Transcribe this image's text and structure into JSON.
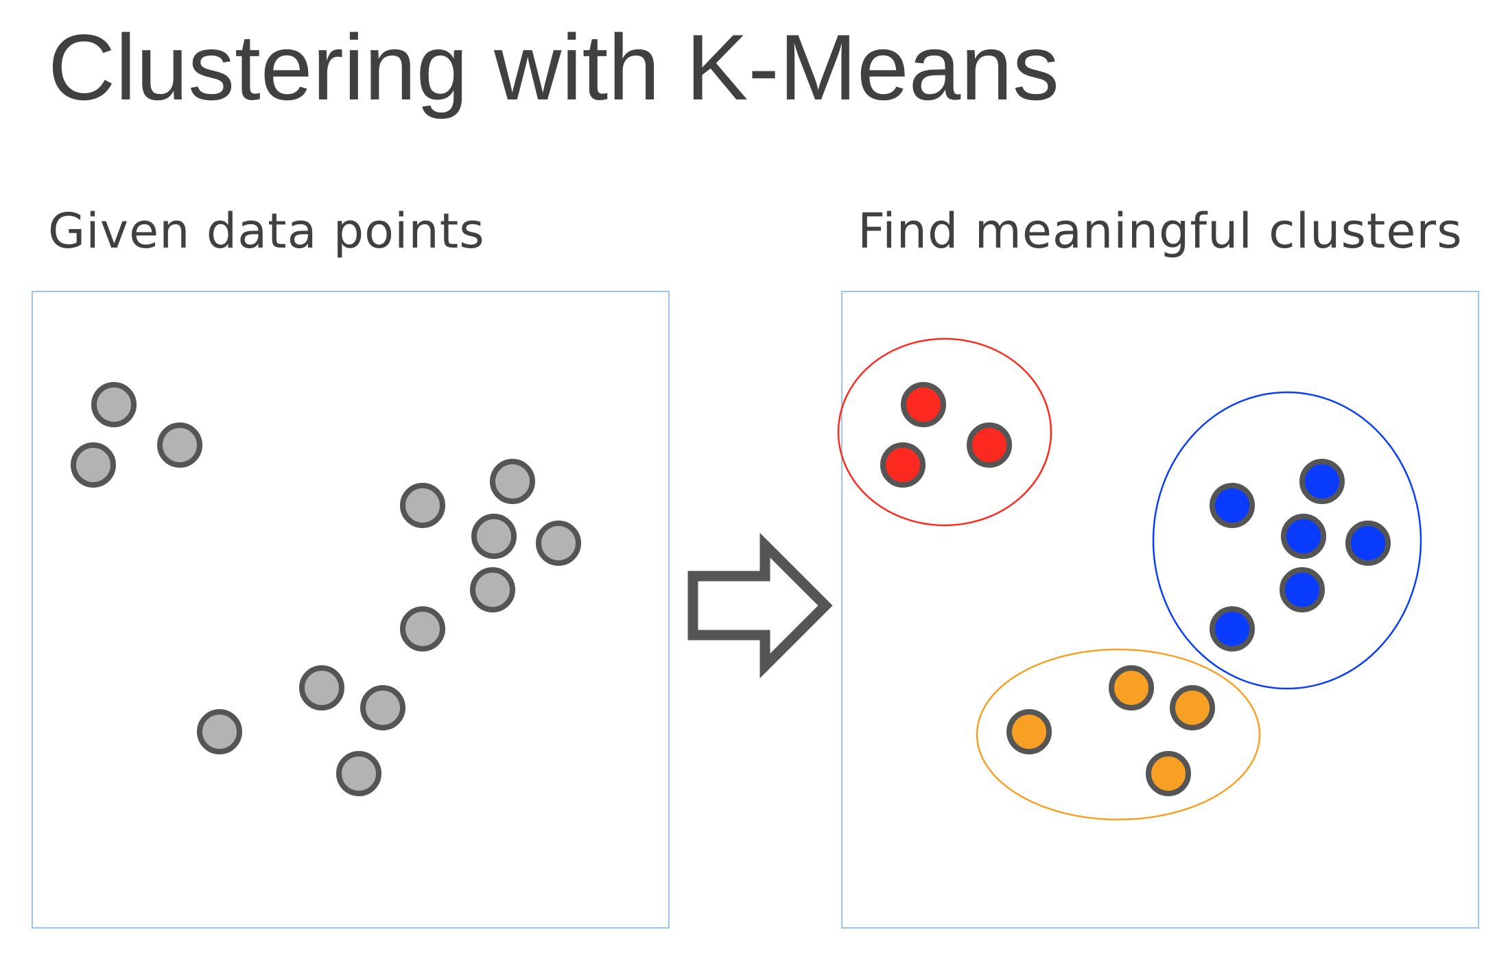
{
  "title": "Clustering with K-Means",
  "left_panel": {
    "caption": "Given data points"
  },
  "right_panel": {
    "caption": "Find meaningful clusters"
  },
  "icons": {
    "arrow": "right-arrow-icon"
  },
  "colors": {
    "point_fill_unclustered": "#b3b3b3",
    "point_stroke": "#555555",
    "panel_border": "#9dc3e6",
    "arrow": "#555555",
    "cluster_red": "#ff2a1f",
    "cluster_blue": "#0a3cff",
    "cluster_orange": "#f7a023"
  },
  "clusters": [
    {
      "name": "red",
      "color": "#ff2a1f"
    },
    {
      "name": "blue",
      "color": "#0a3cff"
    },
    {
      "name": "orange",
      "color": "#f7a023"
    }
  ],
  "points": [
    {
      "cluster": "red"
    },
    {
      "cluster": "red"
    },
    {
      "cluster": "red"
    },
    {
      "cluster": "blue"
    },
    {
      "cluster": "blue"
    },
    {
      "cluster": "blue"
    },
    {
      "cluster": "blue"
    },
    {
      "cluster": "blue"
    },
    {
      "cluster": "blue"
    },
    {
      "cluster": "orange"
    },
    {
      "cluster": "orange"
    },
    {
      "cluster": "orange"
    },
    {
      "cluster": "orange"
    }
  ]
}
